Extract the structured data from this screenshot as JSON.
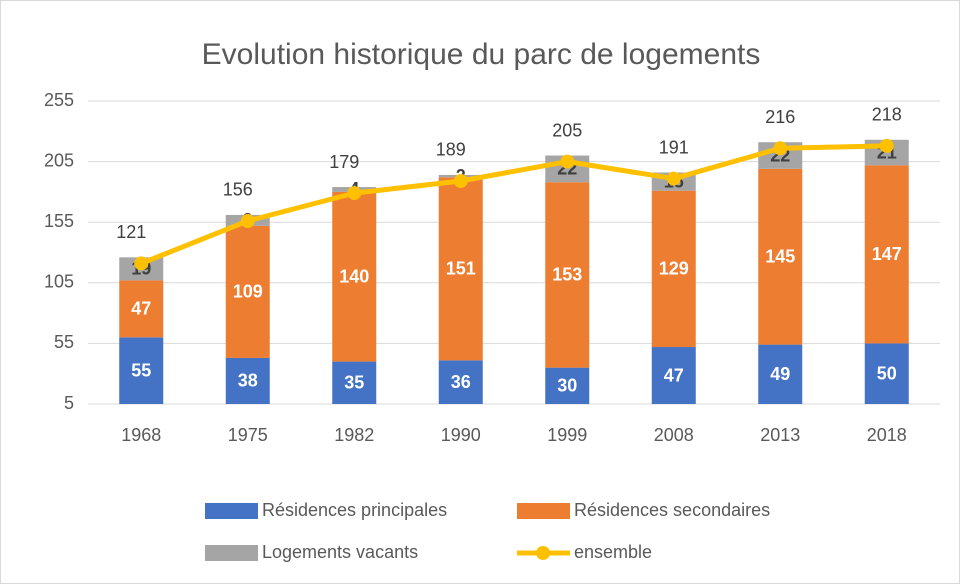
{
  "chart_data": {
    "type": "bar",
    "stacked": true,
    "title": "Evolution historique du parc de logements",
    "categories": [
      "1968",
      "1975",
      "1982",
      "1990",
      "1999",
      "2008",
      "2013",
      "2018"
    ],
    "series": [
      {
        "name": "Résidences principales",
        "color": "#4472c4",
        "values": [
          55,
          38,
          35,
          36,
          30,
          47,
          49,
          50
        ]
      },
      {
        "name": "Résidences secondaires",
        "color": "#ed7d31",
        "values": [
          47,
          109,
          140,
          151,
          153,
          129,
          145,
          147
        ]
      },
      {
        "name": "Logements vacants",
        "color": "#a5a5a5",
        "values": [
          19,
          9,
          4,
          2,
          22,
          15,
          22,
          21
        ]
      },
      {
        "name": "ensemble",
        "type": "line",
        "color": "#ffc000",
        "values": [
          121,
          156,
          179,
          189,
          205,
          191,
          216,
          218
        ]
      }
    ],
    "ylim": [
      5,
      255
    ],
    "yticks": [
      5,
      55,
      105,
      155,
      205,
      255
    ],
    "grid": true,
    "legend": "bottom"
  }
}
